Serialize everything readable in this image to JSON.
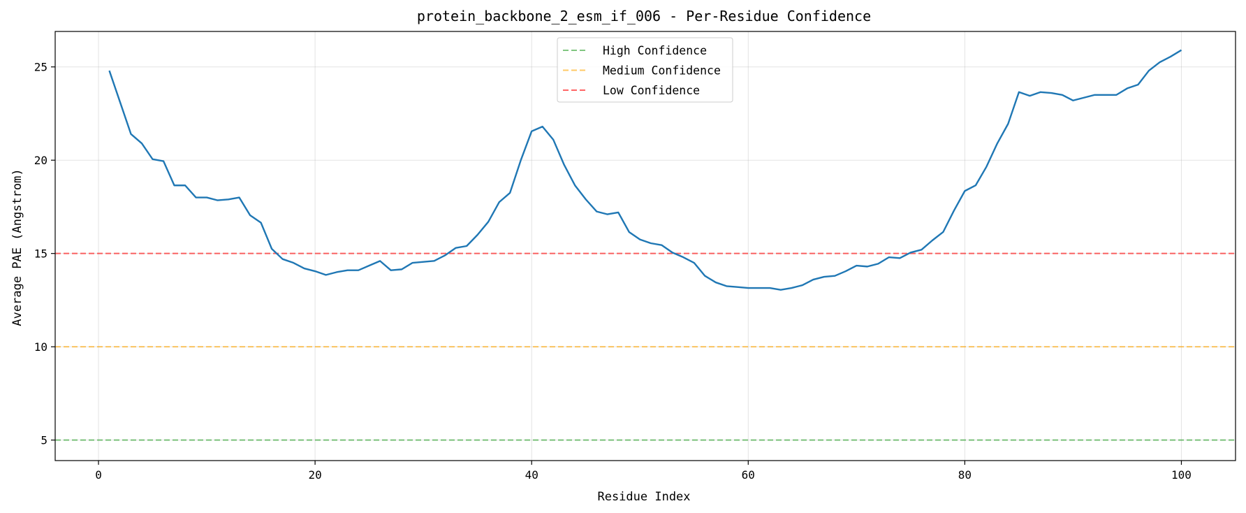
{
  "chart_data": {
    "type": "line",
    "title": "protein_backbone_2_esm_if_006 - Per-Residue Confidence",
    "xlabel": "Residue Index",
    "ylabel": "Average PAE (Angstrom)",
    "xlim": [
      -4,
      105
    ],
    "ylim": [
      3.9,
      26.9
    ],
    "x_ticks": [
      0,
      20,
      40,
      60,
      80,
      100
    ],
    "y_ticks": [
      5,
      10,
      15,
      20,
      25
    ],
    "grid": true,
    "legend_position": "top-center",
    "reference_lines": [
      {
        "name": "High Confidence",
        "y": 5,
        "color": "#2ca02c"
      },
      {
        "name": "Medium Confidence",
        "y": 10,
        "color": "#ffa500"
      },
      {
        "name": "Low Confidence",
        "y": 15,
        "color": "#ff0000"
      }
    ],
    "series": [
      {
        "color": "#1f77b4",
        "x": [
          1,
          2,
          3,
          4,
          5,
          6,
          7,
          8,
          9,
          10,
          11,
          12,
          13,
          14,
          15,
          16,
          17,
          18,
          19,
          20,
          21,
          22,
          23,
          24,
          25,
          26,
          27,
          28,
          29,
          30,
          31,
          32,
          33,
          34,
          35,
          36,
          37,
          38,
          39,
          40,
          41,
          42,
          43,
          44,
          45,
          46,
          47,
          48,
          49,
          50,
          51,
          52,
          53,
          54,
          55,
          56,
          57,
          58,
          59,
          60,
          61,
          62,
          63,
          64,
          65,
          66,
          67,
          68,
          69,
          70,
          71,
          72,
          73,
          74,
          75,
          76,
          77,
          78,
          79,
          80,
          81,
          82,
          83,
          84,
          85,
          86,
          87,
          88,
          89,
          90,
          91,
          92,
          93,
          94,
          95,
          96,
          97,
          98,
          99,
          100
        ],
        "y": [
          24.8,
          23.1,
          21.4,
          20.9,
          20.05,
          19.95,
          18.65,
          18.65,
          18.0,
          18.0,
          17.85,
          17.9,
          18.0,
          17.05,
          16.65,
          15.25,
          14.7,
          14.5,
          14.2,
          14.05,
          13.85,
          14.0,
          14.1,
          14.1,
          14.35,
          14.6,
          14.1,
          14.15,
          14.5,
          14.55,
          14.6,
          14.9,
          15.3,
          15.4,
          16.0,
          16.7,
          17.75,
          18.25,
          20.0,
          21.55,
          21.8,
          21.1,
          19.75,
          18.65,
          17.9,
          17.25,
          17.1,
          17.2,
          16.15,
          15.75,
          15.55,
          15.45,
          15.05,
          14.8,
          14.5,
          13.8,
          13.45,
          13.25,
          13.2,
          13.15,
          13.15,
          13.15,
          13.05,
          13.15,
          13.3,
          13.6,
          13.75,
          13.8,
          14.05,
          14.35,
          14.3,
          14.45,
          14.8,
          14.75,
          15.05,
          15.2,
          15.7,
          16.15,
          17.3,
          18.35,
          18.65,
          19.65,
          20.9,
          21.95,
          23.65,
          23.45,
          23.65,
          23.6,
          23.5,
          23.2,
          23.35,
          23.5,
          23.5,
          23.5,
          23.85,
          24.05,
          24.8,
          25.25,
          25.55,
          25.9
        ]
      }
    ]
  }
}
